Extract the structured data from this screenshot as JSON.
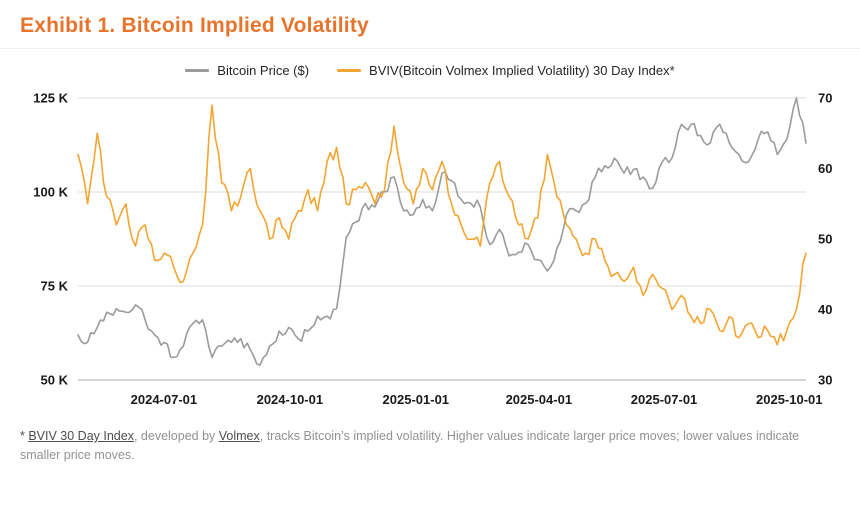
{
  "page": {
    "title": "Exhibit 1. Bitcoin Implied Volatility"
  },
  "legend": [
    {
      "label": "Bitcoin Price ($)",
      "color": "#9B9B9B"
    },
    {
      "label": "BVIV(Bitcoin Volmex Implied Volatility) 30 Day Index*",
      "color": "#F4A531"
    }
  ],
  "footnote": {
    "prefix": "* ",
    "link1": "BVIV 30 Day Index",
    "mid": ", developed by ",
    "link2": "Volmex",
    "rest": ", tracks Bitcoin’s implied volatility. Higher values indicate larger price moves; lower values indicate smaller price moves."
  },
  "chart_data": {
    "type": "line",
    "title": "Exhibit 1. Bitcoin Implied Volatility",
    "grid": "horizontal-left-axis-ticks",
    "legend_position": "top-center",
    "x_start": "2024-04-29",
    "x_end": "2025-10-13",
    "x_interval": "weekly (estimated from plot)",
    "x_ticks": [
      {
        "label": "2024-07-01",
        "pos": 0.118
      },
      {
        "label": "2024-10-01",
        "pos": 0.291
      },
      {
        "label": "2025-01-01",
        "pos": 0.464
      },
      {
        "label": "2025-04-01",
        "pos": 0.633
      },
      {
        "label": "2025-07-01",
        "pos": 0.805
      },
      {
        "label": "2025-10-01",
        "pos": 0.977
      }
    ],
    "left_axis": {
      "label": "Bitcoin Price ($)",
      "unit": "thousand USD",
      "min": 50,
      "max": 125,
      "ticks": [
        {
          "v": 125,
          "label": "125 K"
        },
        {
          "v": 100,
          "label": "100 K"
        },
        {
          "v": 75,
          "label": "75 K"
        },
        {
          "v": 50,
          "label": "50 K"
        }
      ]
    },
    "right_axis": {
      "label": "BVIV 30 Day Index",
      "min": 30,
      "max": 70,
      "ticks": [
        {
          "v": 70,
          "label": "70"
        },
        {
          "v": 60,
          "label": "60"
        },
        {
          "v": 50,
          "label": "50"
        },
        {
          "v": 40,
          "label": "40"
        },
        {
          "v": 30,
          "label": "30"
        }
      ]
    },
    "series": [
      {
        "name": "Bitcoin Price ($)",
        "axis": "left",
        "color": "#9B9B9B",
        "values": [
          62,
          60,
          64,
          68,
          69,
          68,
          70,
          66,
          62,
          60,
          56,
          59,
          65,
          66,
          56,
          59,
          60,
          61,
          58,
          54,
          59,
          63,
          64,
          61,
          63,
          67,
          67,
          69,
          88,
          92,
          97,
          96,
          100,
          104,
          95,
          94,
          98,
          95,
          105,
          103,
          98,
          97,
          96,
          86,
          90,
          83,
          84,
          86,
          82,
          79,
          85,
          94,
          95,
          97,
          104,
          107,
          109,
          105,
          106,
          104,
          101,
          108,
          109,
          118,
          118,
          115,
          113,
          118,
          113,
          110,
          108,
          114,
          116,
          110,
          114,
          125,
          113
        ]
      },
      {
        "name": "BVIV(Bitcoin Volmex Implied Volatility) 30 Day Index*",
        "axis": "right",
        "color": "#F4A531",
        "values": [
          62,
          55,
          65,
          56,
          52,
          55,
          49,
          52,
          47,
          48,
          46,
          44,
          48,
          52,
          69,
          58,
          54,
          56,
          60,
          54,
          50,
          53,
          50,
          54,
          57,
          54,
          61,
          63,
          55,
          57,
          58,
          55,
          57,
          66,
          58,
          55,
          60,
          57,
          61,
          55,
          52,
          50,
          49,
          58,
          61,
          56,
          52,
          50,
          53,
          62,
          56,
          52,
          50,
          48,
          50,
          47,
          45,
          44,
          46,
          42,
          45,
          43,
          40,
          42,
          39,
          38,
          40,
          37,
          39,
          36,
          38,
          36,
          37,
          35,
          37,
          40,
          48
        ]
      }
    ]
  }
}
